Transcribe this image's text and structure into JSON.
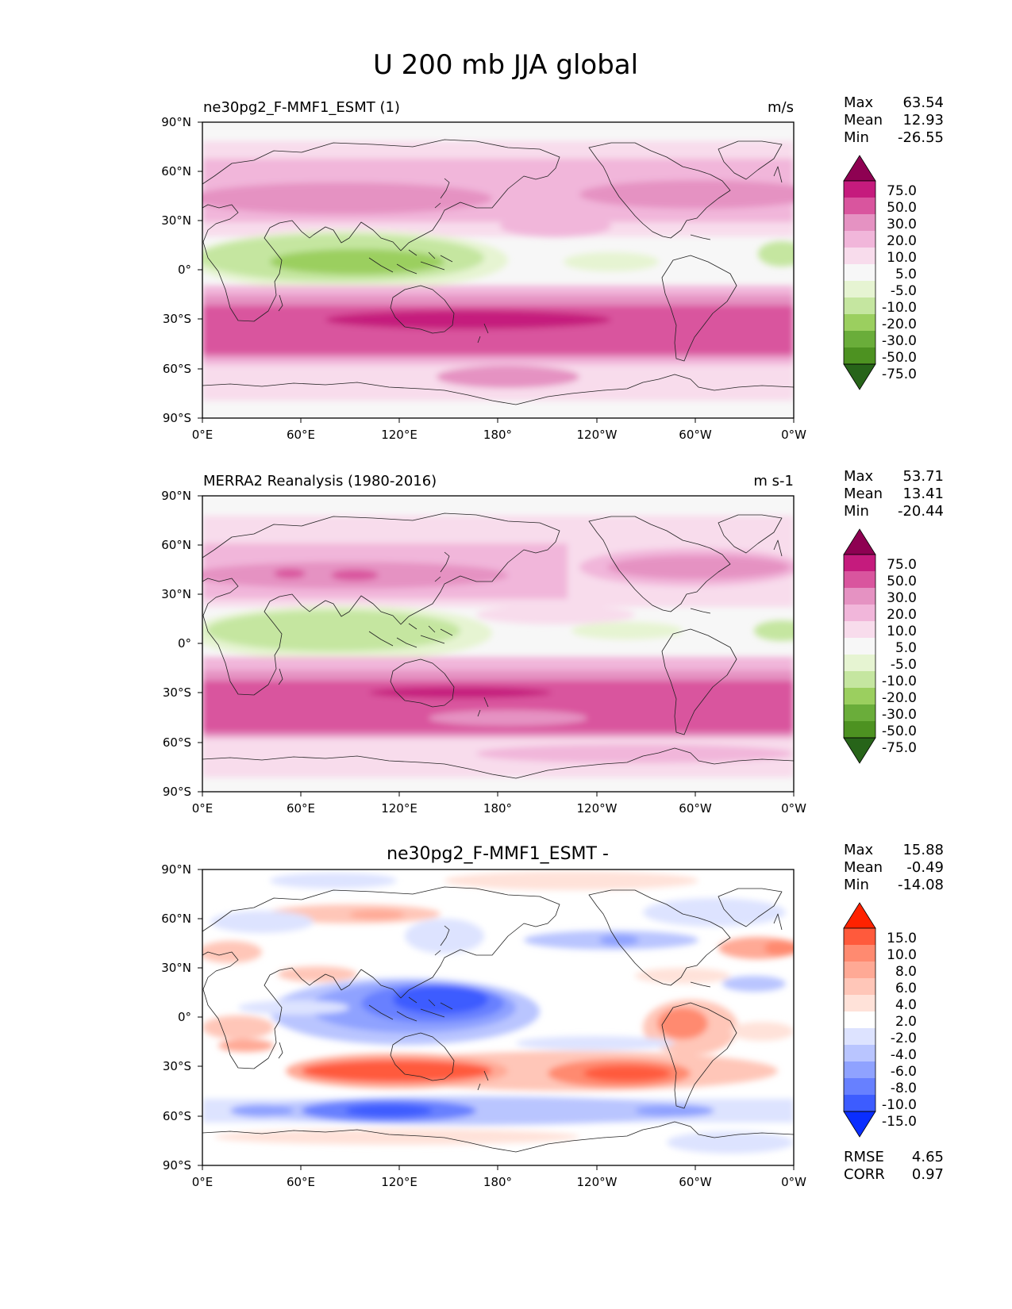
{
  "title": "U 200 mb JJA global",
  "lat_ticks": [
    "90°N",
    "60°N",
    "30°N",
    "0°",
    "30°S",
    "60°S",
    "90°S"
  ],
  "lon_ticks": [
    "0°E",
    "60°E",
    "120°E",
    "180°",
    "120°W",
    "60°W",
    "0°W"
  ],
  "stat_names": {
    "max": "Max",
    "mean": "Mean",
    "min": "Min",
    "rmse": "RMSE",
    "corr": "CORR"
  },
  "wind_levels": [
    "75.0",
    "50.0",
    "30.0",
    "20.0",
    "10.0",
    "5.0",
    "-5.0",
    "-10.0",
    "-20.0",
    "-30.0",
    "-50.0",
    "-75.0"
  ],
  "wind_colors": [
    "#8e0152",
    "#c51b7d",
    "#d9559e",
    "#e592c2",
    "#f1b6da",
    "#f8dcec",
    "#f7f7f7",
    "#e6f4d2",
    "#c5e6a0",
    "#9bcf5f",
    "#6aad3a",
    "#4d9221",
    "#276419"
  ],
  "diff_levels": [
    "15.0",
    "10.0",
    "8.0",
    "6.0",
    "4.0",
    "2.0",
    "-2.0",
    "-4.0",
    "-6.0",
    "-8.0",
    "-10.0",
    "-15.0"
  ],
  "diff_colors": [
    "#ff2200",
    "#ff5a3c",
    "#ff8a70",
    "#ffa995",
    "#ffc6b8",
    "#ffe2d9",
    "#ffffff",
    "#dde3ff",
    "#b9c5ff",
    "#8fa2ff",
    "#6780ff",
    "#3d5cff",
    "#0a2eff"
  ],
  "panels": [
    {
      "id": "model",
      "left_title": "ne30pg2_F-MMF1_ESMT (1)",
      "center_title": "",
      "units": "m/s",
      "max": "63.54",
      "mean": "12.93",
      "min": "-26.55",
      "colorbar": "wind"
    },
    {
      "id": "obs",
      "left_title": "MERRA2 Reanalysis (1980-2016)",
      "center_title": "",
      "units": "m s-1",
      "max": "53.71",
      "mean": "13.41",
      "min": "-20.44",
      "colorbar": "wind"
    },
    {
      "id": "diff",
      "left_title": "",
      "center_title": "ne30pg2_F-MMF1_ESMT -",
      "units": "",
      "max": "15.88",
      "mean": "-0.49",
      "min": "-14.08",
      "colorbar": "diff",
      "rmse": "4.65",
      "corr": "0.97"
    }
  ]
}
